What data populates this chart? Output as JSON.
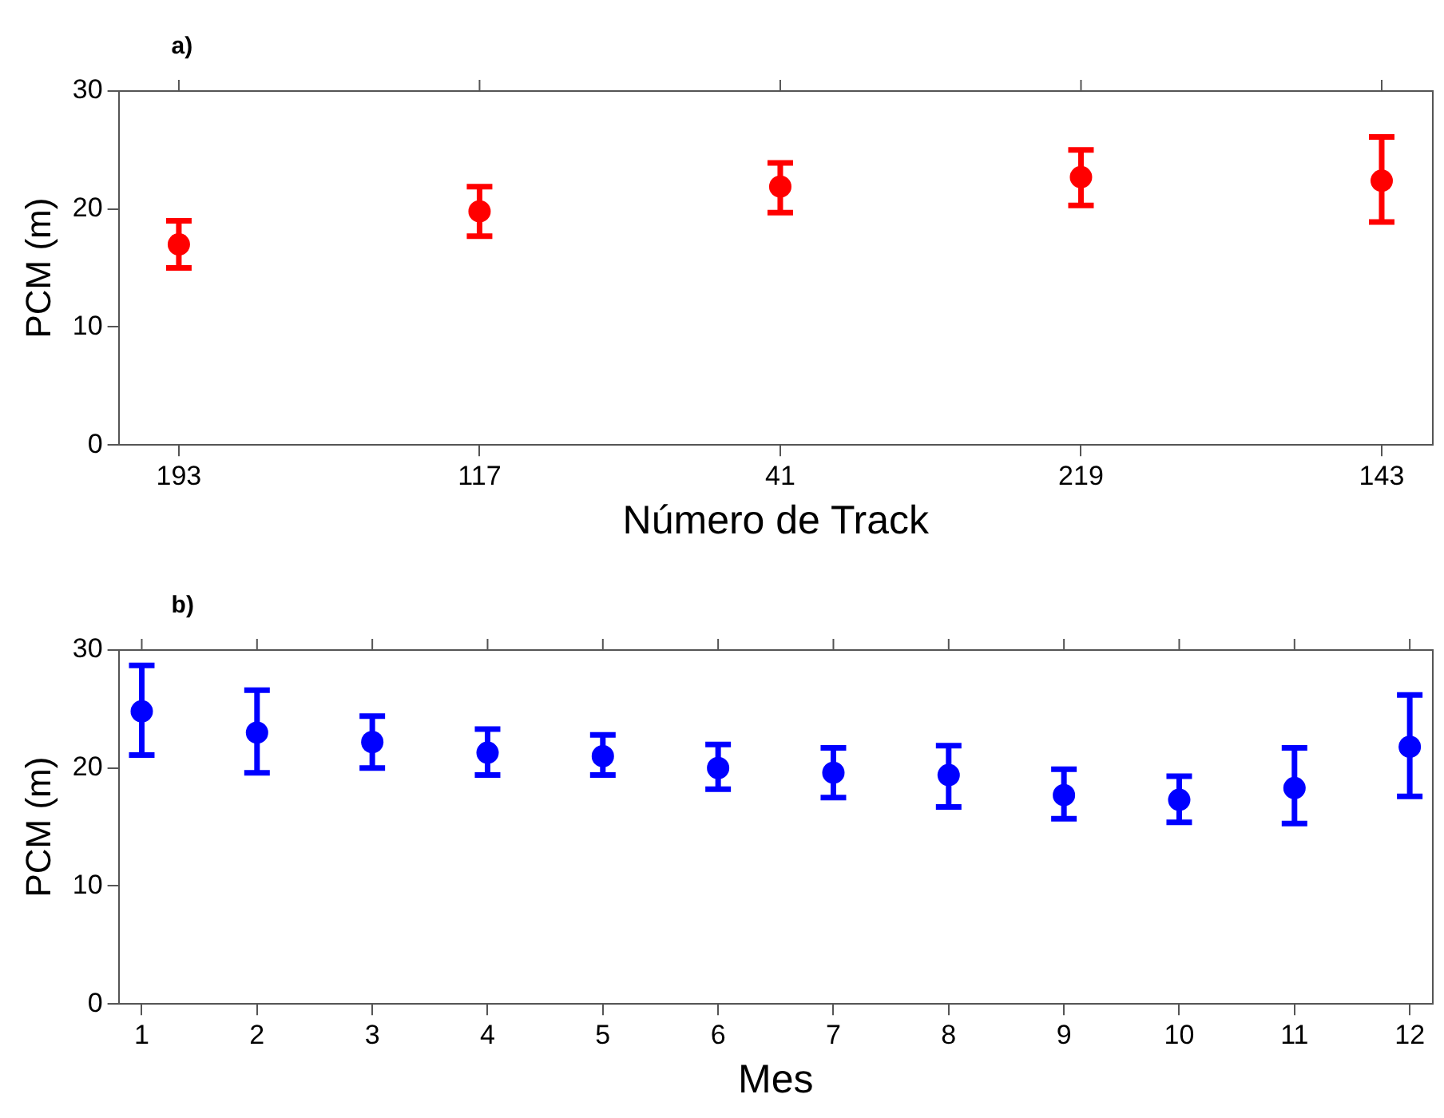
{
  "chart_data": [
    {
      "type": "scatter",
      "title": "a)",
      "xlabel": "Número de Track",
      "ylabel": "PCM (m)",
      "categories": [
        "193",
        "117",
        "41",
        "219",
        "143"
      ],
      "series": [
        {
          "color": "#ff0000",
          "values": [
            17.0,
            19.8,
            21.9,
            22.7,
            22.4
          ],
          "errors": [
            [
              15.0,
              19.0
            ],
            [
              17.7,
              21.9
            ],
            [
              19.7,
              23.9
            ],
            [
              20.3,
              25.0
            ],
            [
              18.9,
              26.1
            ]
          ]
        }
      ],
      "ylim": [
        0,
        30
      ],
      "yticks": [
        0,
        10,
        20,
        30
      ],
      "marker": "circle",
      "grid": false,
      "legend": false
    },
    {
      "type": "scatter",
      "title": "b)",
      "xlabel": "Mes",
      "ylabel": "PCM (m)",
      "x": [
        1,
        2,
        3,
        4,
        5,
        6,
        7,
        8,
        9,
        10,
        11,
        12
      ],
      "series": [
        {
          "color": "#0000ff",
          "values": [
            24.8,
            23.0,
            22.2,
            21.3,
            21.0,
            20.0,
            19.6,
            19.4,
            17.7,
            17.3,
            18.3,
            21.8
          ],
          "errors": [
            [
              21.1,
              28.7
            ],
            [
              19.6,
              26.6
            ],
            [
              20.0,
              24.4
            ],
            [
              19.4,
              23.3
            ],
            [
              19.4,
              22.8
            ],
            [
              18.2,
              22.0
            ],
            [
              17.5,
              21.7
            ],
            [
              16.7,
              21.9
            ],
            [
              15.7,
              19.9
            ],
            [
              15.4,
              19.3
            ],
            [
              15.3,
              21.7
            ],
            [
              17.6,
              26.2
            ]
          ]
        }
      ],
      "xlim": [
        0.8,
        12.2
      ],
      "xticks": [
        1,
        2,
        3,
        4,
        5,
        6,
        7,
        8,
        9,
        10,
        11,
        12
      ],
      "ylim": [
        0,
        30
      ],
      "yticks": [
        0,
        10,
        20,
        30
      ],
      "marker": "circle",
      "grid": false,
      "legend": false
    }
  ]
}
